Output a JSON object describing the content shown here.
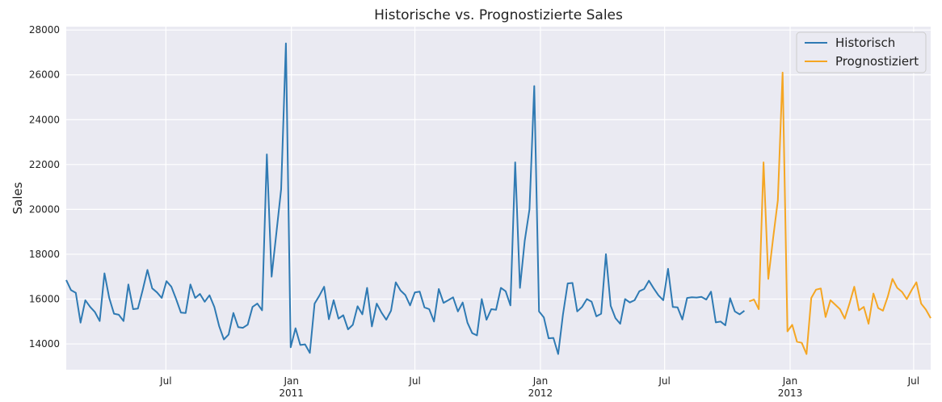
{
  "chart_data": {
    "type": "line",
    "title": "Historische vs. Prognostizierte Sales",
    "xlabel": "",
    "ylabel": "Sales",
    "xlim": [
      "2010-02-05",
      "2013-07-26"
    ],
    "ylim": [
      12850,
      28150
    ],
    "yticks": [
      14000,
      16000,
      18000,
      20000,
      22000,
      24000,
      26000,
      28000
    ],
    "xticks": [
      {
        "date": "2010-07-01",
        "label": "Jul",
        "year": ""
      },
      {
        "date": "2011-01-01",
        "label": "Jan",
        "year": "2011"
      },
      {
        "date": "2011-07-01",
        "label": "Jul",
        "year": ""
      },
      {
        "date": "2012-01-01",
        "label": "Jan",
        "year": "2012"
      },
      {
        "date": "2012-07-01",
        "label": "Jul",
        "year": ""
      },
      {
        "date": "2013-01-01",
        "label": "Jan",
        "year": "2013"
      },
      {
        "date": "2013-07-01",
        "label": "Jul",
        "year": ""
      }
    ],
    "grid": true,
    "legend_position": "top-right",
    "series": [
      {
        "name": "Historisch",
        "color": "#2f7ab3",
        "start_date": "2010-02-05",
        "interval_days": 7,
        "values": [
          16850,
          16400,
          16280,
          14950,
          15950,
          15650,
          15420,
          15020,
          17150,
          16050,
          15350,
          15300,
          15020,
          16650,
          15550,
          15580,
          16400,
          17300,
          16480,
          16300,
          16050,
          16800,
          16550,
          16000,
          15400,
          15380,
          16650,
          16050,
          16230,
          15880,
          16170,
          15650,
          14800,
          14200,
          14420,
          15380,
          14750,
          14720,
          14860,
          15650,
          15800,
          15500,
          22450,
          17000,
          18950,
          20900,
          27400,
          13850,
          14700,
          13950,
          13980,
          13600,
          15800,
          16150,
          16550,
          15100,
          15950,
          15130,
          15280,
          14650,
          14850,
          15680,
          15320,
          16500,
          14780,
          15800,
          15400,
          15080,
          15480,
          16750,
          16380,
          16180,
          15720,
          16300,
          16330,
          15630,
          15550,
          15000,
          16450,
          15830,
          15950,
          16080,
          15450,
          15850,
          14950,
          14480,
          14380,
          16000,
          15080,
          15550,
          15520,
          16500,
          16350,
          15720,
          22100,
          16500,
          18600,
          20000,
          25500,
          15450,
          15180,
          14250,
          14270,
          13550,
          15300,
          16700,
          16720,
          15450,
          15650,
          16000,
          15880,
          15230,
          15350,
          18000,
          15700,
          15150,
          14900,
          16000,
          15850,
          15950,
          16350,
          16450,
          16820,
          16480,
          16170,
          15950,
          17350,
          15650,
          15630,
          15090,
          16050,
          16080,
          16070,
          16100,
          15980,
          16330,
          14960,
          15000,
          14830,
          16040,
          15450,
          15320,
          15480
        ]
      },
      {
        "name": "Prognostiziert",
        "color": "#f5a623",
        "start_date": "2012-11-02",
        "interval_days": 7,
        "values": [
          15900,
          15980,
          15550,
          22100,
          16900,
          18700,
          20400,
          26100,
          14560,
          14850,
          14100,
          14050,
          13550,
          16050,
          16420,
          16470,
          15200,
          15950,
          15750,
          15550,
          15130,
          15800,
          16550,
          15500,
          15650,
          14900,
          16250,
          15600,
          15480,
          16100,
          16900,
          16500,
          16320,
          16000,
          16400,
          16750,
          15800,
          15530,
          15150
        ]
      }
    ]
  }
}
